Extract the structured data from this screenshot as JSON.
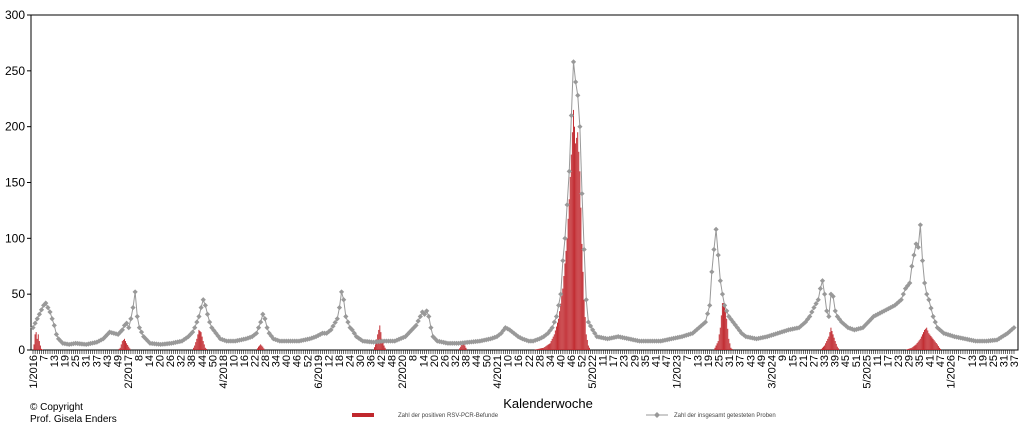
{
  "copyright": {
    "line1": "© Copyright",
    "line2": "Prof. Gisela Enders"
  },
  "chart_data": {
    "type": "bar",
    "title": "",
    "xlabel": "Kalenderwoche",
    "ylabel": "",
    "ylim": [
      0,
      300
    ],
    "yticks": [
      0,
      50,
      100,
      150,
      200,
      250,
      300
    ],
    "grid": false,
    "legend_position": "bottom",
    "x_tick_labels": [
      "1/2016",
      "7",
      "13",
      "19",
      "25",
      "31",
      "37",
      "43",
      "49",
      "2/2017",
      "8",
      "14",
      "20",
      "26",
      "32",
      "38",
      "44",
      "50",
      "4/2018",
      "10",
      "16",
      "22",
      "28",
      "34",
      "40",
      "46",
      "52",
      "6/2019",
      "12",
      "18",
      "24",
      "30",
      "36",
      "42",
      "48",
      "2/2020",
      "8",
      "14",
      "20",
      "26",
      "32",
      "38",
      "44",
      "50",
      "4/2021",
      "10",
      "16",
      "22",
      "28",
      "34",
      "40",
      "46",
      "52",
      "5/2022",
      "11",
      "17",
      "23",
      "29",
      "35",
      "41",
      "47",
      "1/2023",
      "7",
      "13",
      "19",
      "25",
      "31",
      "37",
      "43",
      "49",
      "3/2024",
      "9",
      "15",
      "21",
      "27",
      "33",
      "39",
      "45",
      "51",
      "5/2025",
      "11",
      "17",
      "23",
      "29",
      "35",
      "41",
      "47",
      "1/2026",
      "7",
      "13",
      "19",
      "25",
      "31",
      "37"
    ],
    "series": [
      {
        "name": "Zahl der positiven RSV-PCR-Befunde",
        "kind": "bar",
        "color": "#c0272d",
        "anchors": [
          [
            0,
            0
          ],
          [
            1,
            5
          ],
          [
            2,
            14
          ],
          [
            3,
            16
          ],
          [
            4,
            10
          ],
          [
            5,
            14
          ],
          [
            6,
            8
          ],
          [
            7,
            4
          ],
          [
            8,
            1
          ],
          [
            10,
            0
          ],
          [
            80,
            0
          ],
          [
            82,
            2
          ],
          [
            84,
            8
          ],
          [
            86,
            10
          ],
          [
            88,
            6
          ],
          [
            90,
            3
          ],
          [
            92,
            0
          ],
          [
            150,
            0
          ],
          [
            152,
            4
          ],
          [
            154,
            10
          ],
          [
            156,
            18
          ],
          [
            158,
            16
          ],
          [
            160,
            8
          ],
          [
            162,
            2
          ],
          [
            164,
            0
          ],
          [
            200,
            0
          ],
          [
            210,
            0
          ],
          [
            212,
            3
          ],
          [
            214,
            5
          ],
          [
            216,
            3
          ],
          [
            218,
            0
          ],
          [
            320,
            0
          ],
          [
            322,
            5
          ],
          [
            324,
            14
          ],
          [
            326,
            22
          ],
          [
            328,
            10
          ],
          [
            330,
            4
          ],
          [
            332,
            0
          ],
          [
            400,
            0
          ],
          [
            402,
            3
          ],
          [
            404,
            6
          ],
          [
            406,
            4
          ],
          [
            408,
            0
          ],
          [
            470,
            0
          ],
          [
            480,
            2
          ],
          [
            486,
            6
          ],
          [
            490,
            14
          ],
          [
            494,
            28
          ],
          [
            498,
            55
          ],
          [
            502,
            100
          ],
          [
            504,
            135
          ],
          [
            506,
            175
          ],
          [
            508,
            215
          ],
          [
            510,
            185
          ],
          [
            512,
            195
          ],
          [
            514,
            160
          ],
          [
            516,
            95
          ],
          [
            518,
            45
          ],
          [
            520,
            14
          ],
          [
            522,
            4
          ],
          [
            524,
            0
          ],
          [
            640,
            0
          ],
          [
            644,
            8
          ],
          [
            646,
            20
          ],
          [
            648,
            42
          ],
          [
            650,
            42
          ],
          [
            652,
            28
          ],
          [
            654,
            10
          ],
          [
            656,
            2
          ],
          [
            658,
            0
          ],
          [
            740,
            0
          ],
          [
            744,
            4
          ],
          [
            746,
            8
          ],
          [
            748,
            12
          ],
          [
            750,
            20
          ],
          [
            752,
            14
          ],
          [
            754,
            8
          ],
          [
            756,
            3
          ],
          [
            758,
            0
          ],
          [
            820,
            0
          ],
          [
            826,
            2
          ],
          [
            830,
            5
          ],
          [
            834,
            10
          ],
          [
            838,
            18
          ],
          [
            840,
            20
          ],
          [
            842,
            15
          ],
          [
            846,
            10
          ],
          [
            850,
            5
          ],
          [
            852,
            2
          ],
          [
            854,
            0
          ],
          [
            922,
            0
          ]
        ]
      },
      {
        "name": "Zahl der insgesamt getesteten Proben",
        "kind": "line",
        "color": "#999999",
        "anchors": [
          [
            0,
            20
          ],
          [
            2,
            24
          ],
          [
            4,
            28
          ],
          [
            6,
            32
          ],
          [
            8,
            36
          ],
          [
            10,
            40
          ],
          [
            12,
            42
          ],
          [
            14,
            38
          ],
          [
            16,
            34
          ],
          [
            18,
            28
          ],
          [
            20,
            22
          ],
          [
            22,
            14
          ],
          [
            24,
            10
          ],
          [
            28,
            6
          ],
          [
            34,
            5
          ],
          [
            40,
            6
          ],
          [
            50,
            5
          ],
          [
            60,
            7
          ],
          [
            66,
            10
          ],
          [
            70,
            14
          ],
          [
            72,
            16
          ],
          [
            76,
            15
          ],
          [
            80,
            14
          ],
          [
            84,
            18
          ],
          [
            86,
            22
          ],
          [
            88,
            24
          ],
          [
            90,
            20
          ],
          [
            92,
            28
          ],
          [
            94,
            38
          ],
          [
            96,
            52
          ],
          [
            98,
            30
          ],
          [
            100,
            20
          ],
          [
            104,
            12
          ],
          [
            110,
            6
          ],
          [
            120,
            5
          ],
          [
            130,
            6
          ],
          [
            140,
            8
          ],
          [
            146,
            12
          ],
          [
            150,
            16
          ],
          [
            152,
            20
          ],
          [
            154,
            25
          ],
          [
            156,
            30
          ],
          [
            158,
            38
          ],
          [
            160,
            45
          ],
          [
            162,
            40
          ],
          [
            164,
            32
          ],
          [
            166,
            25
          ],
          [
            168,
            20
          ],
          [
            172,
            15
          ],
          [
            176,
            10
          ],
          [
            182,
            8
          ],
          [
            190,
            8
          ],
          [
            200,
            10
          ],
          [
            206,
            12
          ],
          [
            210,
            15
          ],
          [
            212,
            20
          ],
          [
            214,
            25
          ],
          [
            216,
            32
          ],
          [
            218,
            28
          ],
          [
            220,
            20
          ],
          [
            222,
            15
          ],
          [
            226,
            10
          ],
          [
            232,
            8
          ],
          [
            240,
            8
          ],
          [
            250,
            8
          ],
          [
            260,
            10
          ],
          [
            266,
            12
          ],
          [
            272,
            15
          ],
          [
            276,
            15
          ],
          [
            280,
            18
          ],
          [
            286,
            28
          ],
          [
            288,
            38
          ],
          [
            290,
            52
          ],
          [
            292,
            45
          ],
          [
            294,
            30
          ],
          [
            296,
            25
          ],
          [
            298,
            20
          ],
          [
            300,
            18
          ],
          [
            304,
            12
          ],
          [
            310,
            8
          ],
          [
            320,
            7
          ],
          [
            330,
            8
          ],
          [
            340,
            8
          ],
          [
            350,
            12
          ],
          [
            356,
            18
          ],
          [
            360,
            22
          ],
          [
            364,
            30
          ],
          [
            366,
            34
          ],
          [
            368,
            32
          ],
          [
            370,
            35
          ],
          [
            372,
            30
          ],
          [
            374,
            20
          ],
          [
            376,
            12
          ],
          [
            380,
            8
          ],
          [
            390,
            6
          ],
          [
            400,
            6
          ],
          [
            410,
            7
          ],
          [
            420,
            8
          ],
          [
            430,
            10
          ],
          [
            436,
            12
          ],
          [
            440,
            15
          ],
          [
            444,
            20
          ],
          [
            448,
            18
          ],
          [
            452,
            15
          ],
          [
            456,
            12
          ],
          [
            460,
            10
          ],
          [
            466,
            8
          ],
          [
            470,
            8
          ],
          [
            476,
            10
          ],
          [
            480,
            12
          ],
          [
            484,
            15
          ],
          [
            488,
            20
          ],
          [
            492,
            30
          ],
          [
            496,
            50
          ],
          [
            498,
            80
          ],
          [
            500,
            100
          ],
          [
            502,
            130
          ],
          [
            504,
            160
          ],
          [
            506,
            210
          ],
          [
            507,
            235
          ],
          [
            508,
            258
          ],
          [
            510,
            240
          ],
          [
            512,
            228
          ],
          [
            514,
            200
          ],
          [
            516,
            140
          ],
          [
            518,
            90
          ],
          [
            520,
            45
          ],
          [
            522,
            25
          ],
          [
            526,
            18
          ],
          [
            530,
            12
          ],
          [
            540,
            10
          ],
          [
            550,
            12
          ],
          [
            560,
            10
          ],
          [
            570,
            8
          ],
          [
            580,
            8
          ],
          [
            590,
            8
          ],
          [
            600,
            10
          ],
          [
            610,
            12
          ],
          [
            620,
            15
          ],
          [
            626,
            20
          ],
          [
            632,
            25
          ],
          [
            636,
            40
          ],
          [
            638,
            70
          ],
          [
            640,
            90
          ],
          [
            642,
            108
          ],
          [
            644,
            85
          ],
          [
            646,
            62
          ],
          [
            648,
            50
          ],
          [
            650,
            40
          ],
          [
            654,
            30
          ],
          [
            658,
            25
          ],
          [
            662,
            20
          ],
          [
            666,
            15
          ],
          [
            670,
            12
          ],
          [
            680,
            10
          ],
          [
            690,
            12
          ],
          [
            700,
            15
          ],
          [
            710,
            18
          ],
          [
            720,
            20
          ],
          [
            726,
            25
          ],
          [
            730,
            30
          ],
          [
            734,
            38
          ],
          [
            738,
            45
          ],
          [
            740,
            55
          ],
          [
            742,
            62
          ],
          [
            744,
            50
          ],
          [
            746,
            35
          ],
          [
            748,
            30
          ],
          [
            750,
            50
          ],
          [
            752,
            48
          ],
          [
            754,
            35
          ],
          [
            756,
            30
          ],
          [
            760,
            25
          ],
          [
            766,
            20
          ],
          [
            772,
            18
          ],
          [
            780,
            20
          ],
          [
            790,
            30
          ],
          [
            800,
            35
          ],
          [
            810,
            40
          ],
          [
            816,
            45
          ],
          [
            820,
            55
          ],
          [
            824,
            60
          ],
          [
            826,
            75
          ],
          [
            830,
            95
          ],
          [
            832,
            92
          ],
          [
            834,
            112
          ],
          [
            836,
            80
          ],
          [
            838,
            60
          ],
          [
            840,
            50
          ],
          [
            842,
            45
          ],
          [
            846,
            30
          ],
          [
            850,
            20
          ],
          [
            856,
            15
          ],
          [
            866,
            12
          ],
          [
            876,
            10
          ],
          [
            886,
            8
          ],
          [
            896,
            8
          ],
          [
            906,
            9
          ],
          [
            916,
            15
          ],
          [
            922,
            20
          ]
        ]
      }
    ]
  }
}
